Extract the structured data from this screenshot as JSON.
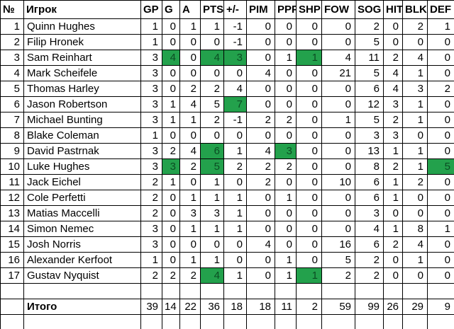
{
  "colors": {
    "highlight_bg": "#23a14c",
    "highlight_text": "#0b4d23",
    "grid_line": "#000000",
    "background": "#ffffff"
  },
  "table": {
    "headers": [
      "№",
      "Игрок",
      "GP",
      "G",
      "A",
      "PTS",
      "+/-",
      "PIM",
      "PPP",
      "SHP",
      "FOW",
      "SOG",
      "HIT",
      "BLK",
      "DEF"
    ],
    "rows": [
      {
        "num": "1",
        "player": "Quinn Hughes",
        "values": [
          "1",
          "0",
          "1",
          "1",
          "-1",
          "0",
          "0",
          "0",
          "0",
          "2",
          "0",
          "2",
          "1"
        ],
        "highlights": []
      },
      {
        "num": "2",
        "player": "Filip Hronek",
        "values": [
          "1",
          "0",
          "0",
          "0",
          "-1",
          "0",
          "0",
          "0",
          "0",
          "5",
          "0",
          "0",
          "0"
        ],
        "highlights": []
      },
      {
        "num": "3",
        "player": "Sam Reinhart",
        "values": [
          "3",
          "4",
          "0",
          "4",
          "3",
          "0",
          "1",
          "1",
          "4",
          "11",
          "2",
          "4",
          "0"
        ],
        "highlights": [
          1,
          3,
          4,
          7
        ]
      },
      {
        "num": "4",
        "player": "Mark Scheifele",
        "values": [
          "3",
          "0",
          "0",
          "0",
          "0",
          "4",
          "0",
          "0",
          "21",
          "5",
          "4",
          "1",
          "0"
        ],
        "highlights": []
      },
      {
        "num": "5",
        "player": "Thomas Harley",
        "values": [
          "3",
          "0",
          "2",
          "2",
          "4",
          "0",
          "0",
          "0",
          "0",
          "6",
          "4",
          "3",
          "2"
        ],
        "highlights": []
      },
      {
        "num": "6",
        "player": "Jason Robertson",
        "values": [
          "3",
          "1",
          "4",
          "5",
          "7",
          "0",
          "0",
          "0",
          "0",
          "12",
          "3",
          "1",
          "0"
        ],
        "highlights": [
          4
        ]
      },
      {
        "num": "7",
        "player": "Michael Bunting",
        "values": [
          "3",
          "1",
          "1",
          "2",
          "-1",
          "2",
          "2",
          "0",
          "1",
          "5",
          "2",
          "1",
          "0"
        ],
        "highlights": []
      },
      {
        "num": "8",
        "player": "Blake Coleman",
        "values": [
          "1",
          "0",
          "0",
          "0",
          "0",
          "0",
          "0",
          "0",
          "0",
          "3",
          "3",
          "0",
          "0"
        ],
        "highlights": []
      },
      {
        "num": "9",
        "player": "David Pastrnak",
        "values": [
          "3",
          "2",
          "4",
          "6",
          "1",
          "4",
          "3",
          "0",
          "0",
          "13",
          "1",
          "1",
          "0"
        ],
        "highlights": [
          3,
          6
        ]
      },
      {
        "num": "10",
        "player": "Luke Hughes",
        "values": [
          "3",
          "3",
          "2",
          "5",
          "2",
          "2",
          "2",
          "0",
          "0",
          "8",
          "2",
          "1",
          "5"
        ],
        "highlights": [
          1,
          3,
          12
        ]
      },
      {
        "num": "11",
        "player": "Jack Eichel",
        "values": [
          "2",
          "1",
          "0",
          "1",
          "0",
          "2",
          "0",
          "0",
          "10",
          "6",
          "1",
          "2",
          "0"
        ],
        "highlights": []
      },
      {
        "num": "12",
        "player": "Cole Perfetti",
        "values": [
          "2",
          "0",
          "1",
          "1",
          "1",
          "0",
          "1",
          "0",
          "0",
          "6",
          "1",
          "0",
          "0"
        ],
        "highlights": []
      },
      {
        "num": "13",
        "player": "Matias Maccelli",
        "values": [
          "2",
          "0",
          "3",
          "3",
          "1",
          "0",
          "0",
          "0",
          "0",
          "3",
          "0",
          "0",
          "0"
        ],
        "highlights": []
      },
      {
        "num": "14",
        "player": "Simon Nemec",
        "values": [
          "3",
          "0",
          "1",
          "1",
          "1",
          "0",
          "0",
          "0",
          "0",
          "4",
          "1",
          "8",
          "1"
        ],
        "highlights": []
      },
      {
        "num": "15",
        "player": "Josh Norris",
        "values": [
          "3",
          "0",
          "0",
          "0",
          "0",
          "4",
          "0",
          "0",
          "16",
          "6",
          "2",
          "4",
          "0"
        ],
        "highlights": []
      },
      {
        "num": "16",
        "player": "Alexander Kerfoot",
        "values": [
          "1",
          "0",
          "1",
          "1",
          "0",
          "0",
          "1",
          "0",
          "5",
          "2",
          "0",
          "1",
          "0"
        ],
        "highlights": []
      },
      {
        "num": "17",
        "player": "Gustav Nyquist",
        "values": [
          "2",
          "2",
          "2",
          "4",
          "1",
          "0",
          "1",
          "1",
          "2",
          "2",
          "0",
          "0",
          "0"
        ],
        "highlights": [
          3,
          7
        ]
      }
    ],
    "total": {
      "label": "Итого",
      "values": [
        "39",
        "14",
        "22",
        "36",
        "18",
        "18",
        "11",
        "2",
        "59",
        "99",
        "26",
        "29",
        "9"
      ]
    }
  }
}
